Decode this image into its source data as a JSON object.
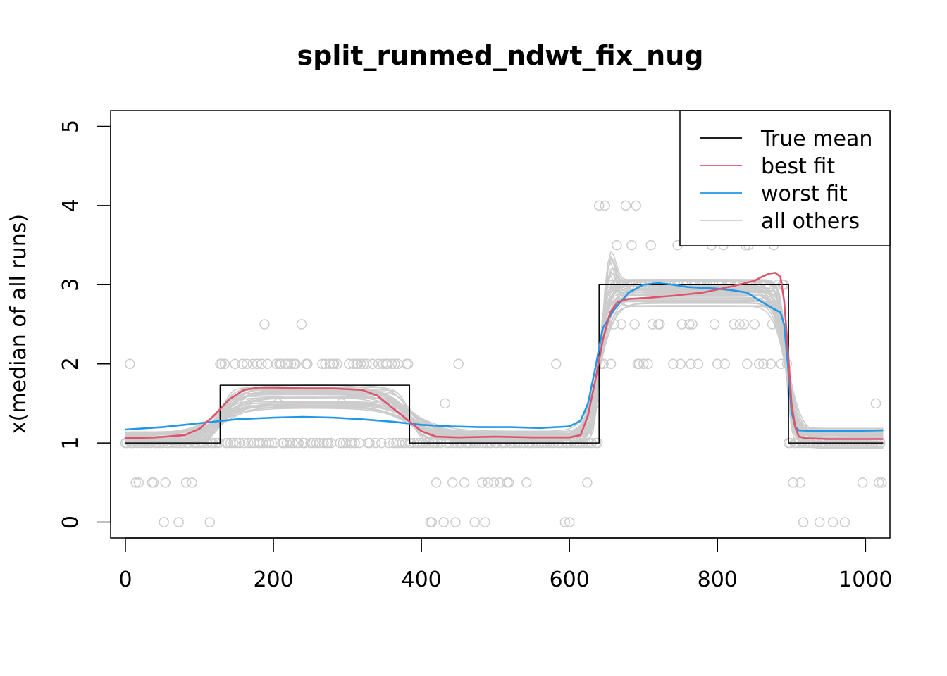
{
  "chart_data": {
    "type": "line",
    "title": "split_runmed_ndwt_fix_nug",
    "xlabel": "",
    "ylabel": "x(median of all runs)",
    "xlim": [
      -20,
      1033
    ],
    "ylim": [
      -0.2,
      5.2
    ],
    "x_ticks": [
      0,
      200,
      400,
      600,
      800,
      1000
    ],
    "y_ticks": [
      0,
      1,
      2,
      3,
      4,
      5
    ],
    "grid": false,
    "legend_position": "top-right",
    "colors": {
      "true_mean": "#000000",
      "best_fit": "#DF536B",
      "worst_fit": "#2297E6",
      "others": "#CCCCCC"
    },
    "legend": [
      {
        "label": "True mean",
        "key": "true_mean"
      },
      {
        "label": "best fit",
        "key": "best_fit"
      },
      {
        "label": "worst fit",
        "key": "worst_fit"
      },
      {
        "label": "all others",
        "key": "others"
      }
    ],
    "series": [
      {
        "name": "True mean",
        "key": "true_mean",
        "style": "step",
        "x": [
          0,
          128,
          128,
          384,
          384,
          640,
          640,
          896,
          896,
          1024
        ],
        "y": [
          1,
          1,
          1.73,
          1.73,
          1,
          1,
          3,
          3,
          1,
          1
        ]
      },
      {
        "name": "best fit",
        "key": "best_fit",
        "style": "line",
        "x": [
          0,
          40,
          80,
          100,
          120,
          140,
          160,
          180,
          200,
          240,
          280,
          320,
          340,
          360,
          380,
          400,
          420,
          450,
          500,
          550,
          600,
          615,
          625,
          635,
          645,
          655,
          665,
          680,
          700,
          740,
          780,
          820,
          850,
          860,
          870,
          878,
          885,
          890,
          895,
          900,
          905,
          910,
          920,
          950,
          1000,
          1024
        ],
        "y": [
          1.06,
          1.07,
          1.1,
          1.18,
          1.35,
          1.55,
          1.67,
          1.7,
          1.7,
          1.69,
          1.69,
          1.67,
          1.6,
          1.45,
          1.3,
          1.15,
          1.08,
          1.07,
          1.08,
          1.07,
          1.07,
          1.1,
          1.35,
          1.8,
          2.3,
          2.65,
          2.78,
          2.82,
          2.83,
          2.86,
          2.9,
          2.98,
          3.05,
          3.1,
          3.14,
          3.15,
          3.1,
          2.8,
          2.2,
          1.5,
          1.2,
          1.08,
          1.06,
          1.05,
          1.05,
          1.05
        ]
      },
      {
        "name": "worst fit",
        "key": "worst_fit",
        "style": "line",
        "x": [
          0,
          50,
          100,
          150,
          200,
          240,
          280,
          320,
          360,
          400,
          440,
          480,
          520,
          560,
          600,
          615,
          625,
          635,
          645,
          660,
          680,
          700,
          720,
          740,
          760,
          780,
          800,
          820,
          840,
          860,
          875,
          885,
          890,
          895,
          900,
          905,
          910,
          930,
          970,
          1024
        ],
        "y": [
          1.17,
          1.2,
          1.25,
          1.3,
          1.32,
          1.33,
          1.32,
          1.3,
          1.27,
          1.23,
          1.21,
          1.2,
          1.2,
          1.19,
          1.21,
          1.28,
          1.5,
          1.95,
          2.45,
          2.68,
          2.9,
          3.0,
          3.02,
          3.0,
          2.97,
          2.96,
          2.95,
          2.93,
          2.9,
          2.78,
          2.7,
          2.65,
          2.5,
          2.0,
          1.4,
          1.2,
          1.16,
          1.15,
          1.15,
          1.16
        ]
      }
    ],
    "others_note": "approximately 40 gray fitted curves and gray circle markers for observed data"
  }
}
